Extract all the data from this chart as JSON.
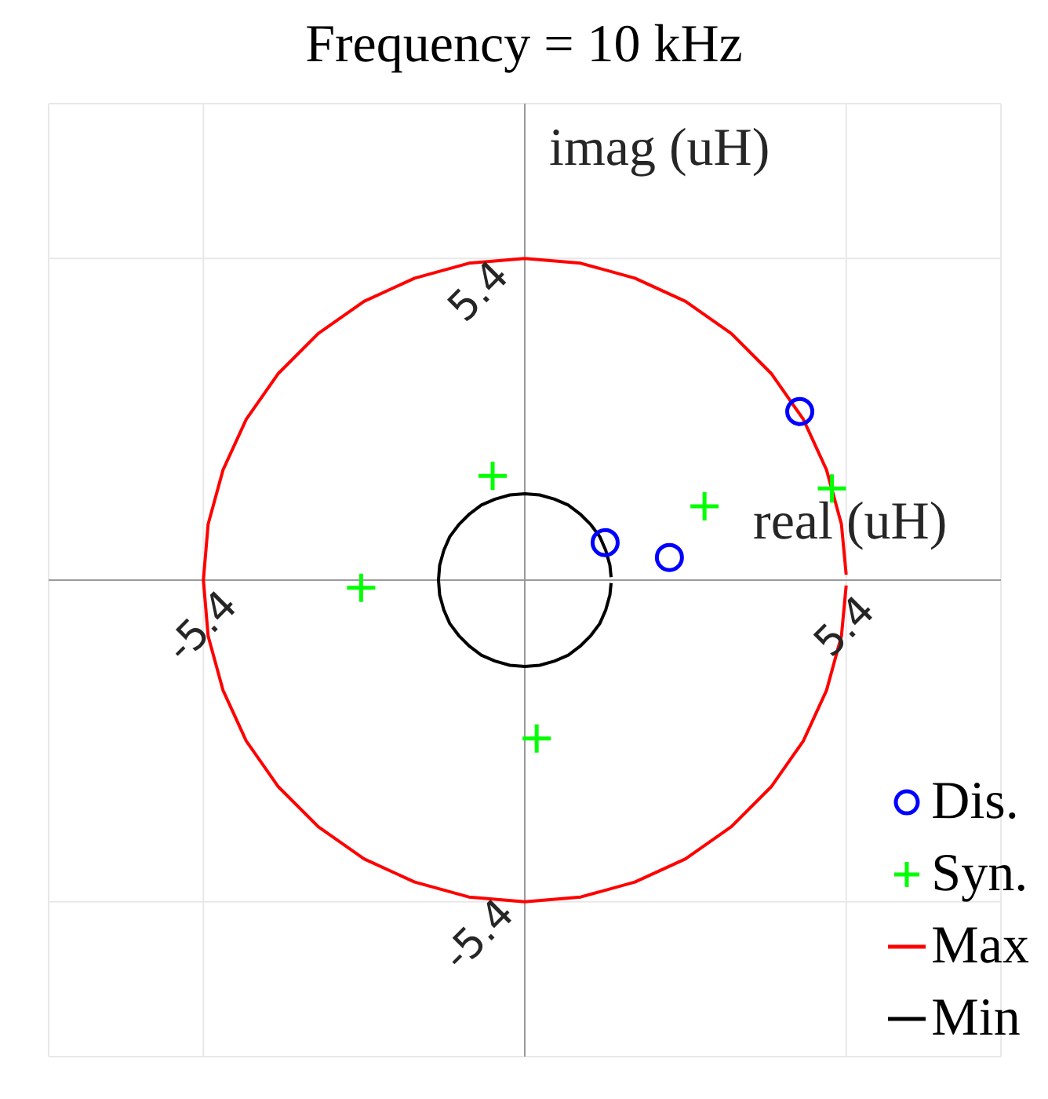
{
  "chart_data": {
    "type": "scatter",
    "title": "Frequency = 10 kHz",
    "xlabel": "real (uH)",
    "ylabel": "imag (uH)",
    "xlim": [
      -8,
      8
    ],
    "ylim": [
      -8,
      8
    ],
    "xticks": [
      -5.4,
      5.4
    ],
    "yticks": [
      -5.4,
      5.4
    ],
    "grid": true,
    "legend": "bottom right",
    "series": [
      {
        "name": "Dis.",
        "type": "scatter",
        "marker": "circle",
        "color": "#0000ff",
        "x": [
          4.62,
          1.35,
          2.43
        ],
        "values": [
          2.83,
          0.63,
          0.38
        ]
      },
      {
        "name": "Syn.",
        "type": "scatter",
        "marker": "cross",
        "color": "#00ff00",
        "x": [
          -0.54,
          -2.75,
          3.02,
          5.16,
          0.2
        ],
        "values": [
          1.75,
          -0.13,
          1.24,
          1.54,
          -2.66
        ]
      },
      {
        "name": "Max",
        "type": "line",
        "color": "#ff0000",
        "x": [
          5.4,
          5.32,
          5.07,
          4.68,
          4.14,
          3.47,
          2.7,
          1.85,
          0.94,
          0,
          -0.94,
          -1.85,
          -2.7,
          -3.47,
          -4.14,
          -4.68,
          -5.07,
          -5.32,
          -5.4,
          -5.32,
          -5.07,
          -4.68,
          -4.14,
          -3.47,
          -2.7,
          -1.85,
          -0.94,
          0,
          0.94,
          1.85,
          2.7,
          3.47,
          4.14,
          4.68,
          5.07,
          5.32,
          5.4
        ],
        "values": [
          0.09,
          0.94,
          1.85,
          2.7,
          3.47,
          4.14,
          4.68,
          5.07,
          5.32,
          5.4,
          5.32,
          5.07,
          4.68,
          4.14,
          3.47,
          2.7,
          1.85,
          0.94,
          0,
          -0.94,
          -1.85,
          -2.7,
          -3.47,
          -4.14,
          -4.68,
          -5.07,
          -5.32,
          -5.4,
          -5.32,
          -5.07,
          -4.68,
          -4.14,
          -3.47,
          -2.7,
          -1.85,
          -0.94,
          -0.09
        ]
      },
      {
        "name": "Min",
        "type": "line",
        "color": "#000000",
        "x": [
          1.45,
          1.43,
          1.36,
          1.26,
          1.11,
          0.93,
          0.73,
          0.5,
          0.25,
          0,
          -0.25,
          -0.5,
          -0.73,
          -0.93,
          -1.11,
          -1.26,
          -1.36,
          -1.43,
          -1.45,
          -1.43,
          -1.36,
          -1.26,
          -1.11,
          -0.93,
          -0.73,
          -0.5,
          -0.25,
          0,
          0.25,
          0.5,
          0.73,
          0.93,
          1.11,
          1.26,
          1.36,
          1.43,
          1.45
        ],
        "values": [
          0.05,
          0.25,
          0.5,
          0.73,
          0.93,
          1.11,
          1.26,
          1.36,
          1.43,
          1.45,
          1.43,
          1.36,
          1.26,
          1.11,
          0.93,
          0.73,
          0.5,
          0.25,
          0,
          -0.25,
          -0.5,
          -0.73,
          -0.93,
          -1.11,
          -1.26,
          -1.36,
          -1.43,
          -1.45,
          -1.43,
          -1.36,
          -1.26,
          -1.11,
          -0.93,
          -0.73,
          -0.5,
          -0.25,
          -0.05
        ]
      }
    ]
  }
}
